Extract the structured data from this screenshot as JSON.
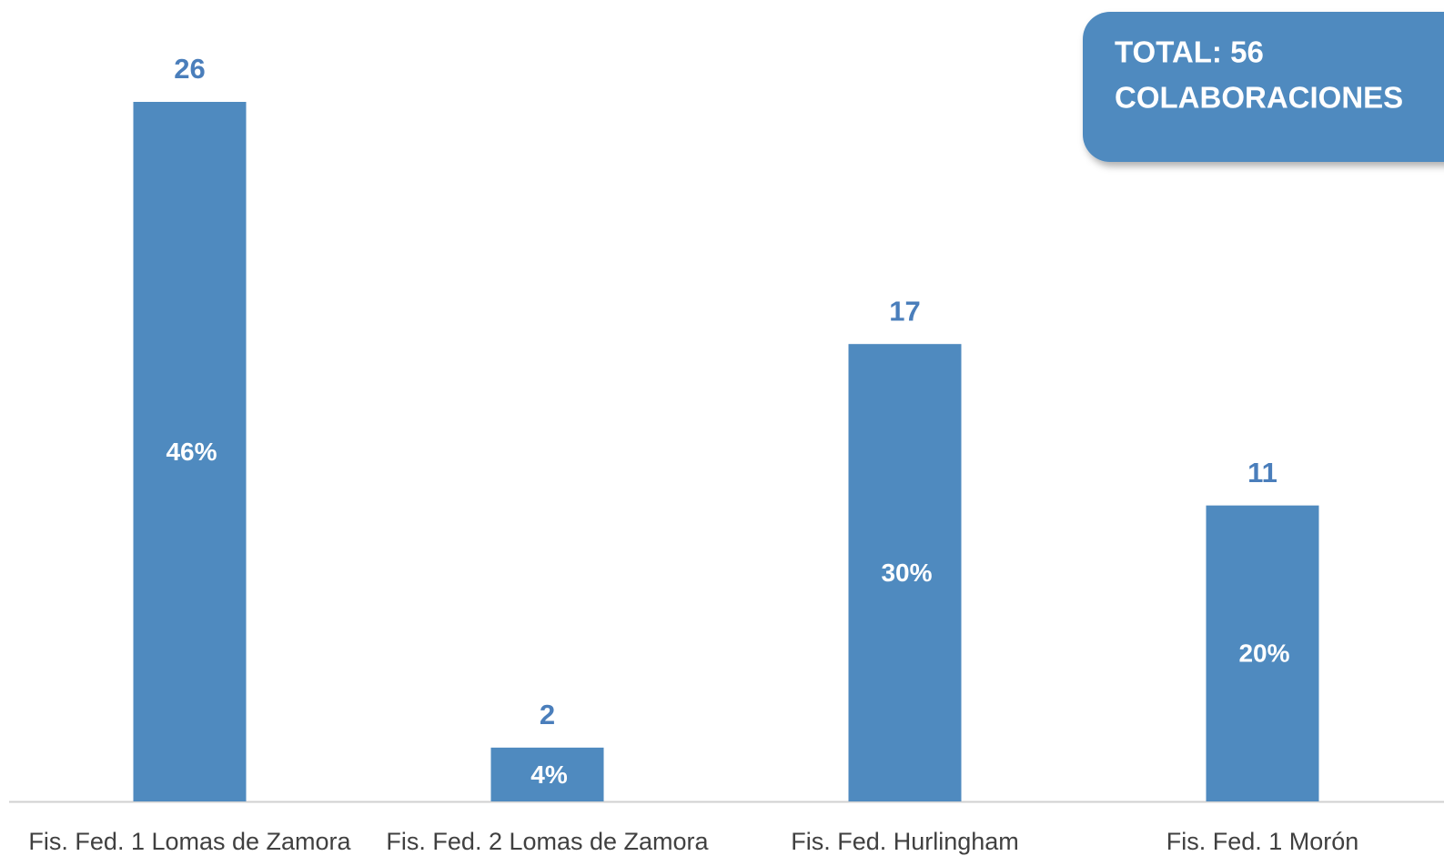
{
  "chart_data": {
    "type": "bar",
    "categories": [
      "Fis. Fed. 1 Lomas de Zamora",
      "Fis. Fed. 2 Lomas de Zamora",
      "Fis. Fed. Hurlingham",
      "Fis. Fed. 1 Morón"
    ],
    "values": [
      26,
      2,
      17,
      11
    ],
    "percent_labels": [
      "46%",
      "4%",
      "30%",
      "20%"
    ],
    "color": "#4f8abf",
    "ylim": [
      0,
      26
    ],
    "annotation": [
      "TOTAL: 56",
      "COLABORACIONES"
    ]
  }
}
